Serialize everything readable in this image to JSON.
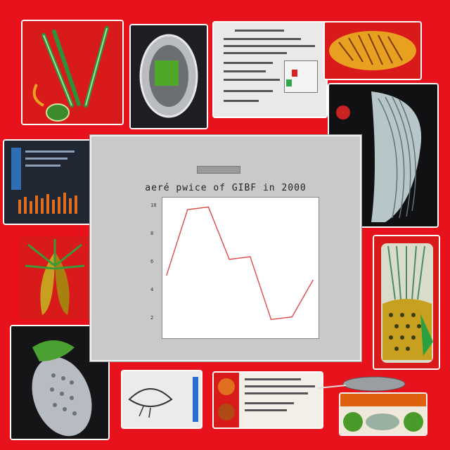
{
  "collage": {
    "background": "#e8121c",
    "tiles": [
      {
        "name": "asparagus-illustration-tile",
        "icon": "vegetable-icon"
      },
      {
        "name": "seed-pod-illustration-tile",
        "icon": "seed-icon"
      },
      {
        "name": "document-screenshot-tile",
        "icon": "document-icon"
      },
      {
        "name": "striped-leaf-tile",
        "icon": "leaf-icon"
      },
      {
        "name": "fibrous-root-tile",
        "icon": "root-icon"
      },
      {
        "name": "bar-chart-screen-tile",
        "icon": "bar-chart-icon"
      },
      {
        "name": "green-plant-tile",
        "icon": "plant-icon"
      },
      {
        "name": "pineapple-jar-tile",
        "icon": "jar-icon"
      },
      {
        "name": "cucumber-tile",
        "icon": "cucumber-icon"
      },
      {
        "name": "fish-sketch-tile",
        "icon": "fish-icon"
      },
      {
        "name": "recipe-card-tile",
        "icon": "recipe-icon"
      },
      {
        "name": "vegetable-row-tile",
        "icon": "vegetable-row-icon"
      }
    ]
  },
  "chart_window": {
    "header_label": "",
    "title": "aeré pwice of GIBF in 2000",
    "y_axis_label": "",
    "x_axis_label": "",
    "accent": "#e04a4a"
  },
  "chart_data": {
    "type": "line",
    "title": "aeré pwice of GIBF in 2000",
    "xlabel": "",
    "ylabel": "",
    "x": [
      0,
      1,
      2,
      3,
      4,
      5,
      6,
      7
    ],
    "values": [
      4.4,
      9.4,
      9.6,
      5.6,
      5.8,
      1.0,
      1.2,
      4.0
    ],
    "ylim": [
      0,
      10
    ],
    "xlim": [
      0,
      7
    ],
    "y_ticks": [
      "10",
      "8",
      "6",
      "4",
      "2"
    ],
    "x_ticks": [
      "",
      "",
      "",
      "",
      "",
      "",
      "",
      "",
      ""
    ],
    "series_color": "#e04a4a",
    "grid": false
  }
}
